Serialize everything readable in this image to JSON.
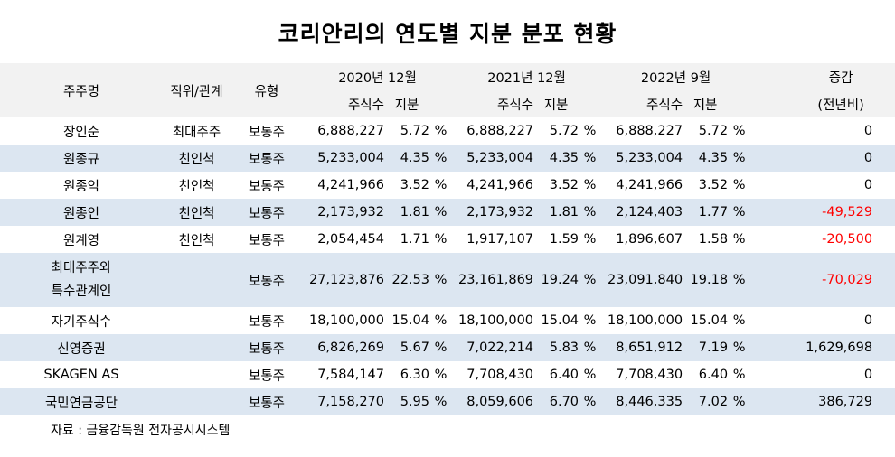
{
  "title": "코리안리의 연도별 지분 분포 현황",
  "headers": {
    "shareholder": "주주명",
    "relation": "직위/관계",
    "type": "유형",
    "period1": "2020년 12월",
    "period2": "2021년 12월",
    "period3": "2022년 9월",
    "change_line1": "증감",
    "change_line2": "(전년비)",
    "shares": "주식수",
    "stake": "지분"
  },
  "percent_sign": "%",
  "rows": [
    {
      "name": "장인순",
      "relation": "최대주주",
      "type": "보통주",
      "s1": "6,888,227",
      "p1": "5.72",
      "s2": "6,888,227",
      "p2": "5.72",
      "s3": "6,888,227",
      "p3": "5.72",
      "change": "0"
    },
    {
      "name": "원종규",
      "relation": "친인척",
      "type": "보통주",
      "s1": "5,233,004",
      "p1": "4.35",
      "s2": "5,233,004",
      "p2": "4.35",
      "s3": "5,233,004",
      "p3": "4.35",
      "change": "0"
    },
    {
      "name": "원종익",
      "relation": "친인척",
      "type": "보통주",
      "s1": "4,241,966",
      "p1": "3.52",
      "s2": "4,241,966",
      "p2": "3.52",
      "s3": "4,241,966",
      "p3": "3.52",
      "change": "0"
    },
    {
      "name": "원종인",
      "relation": "친인척",
      "type": "보통주",
      "s1": "2,173,932",
      "p1": "1.81",
      "s2": "2,173,932",
      "p2": "1.81",
      "s3": "2,124,403",
      "p3": "1.77",
      "change": "-49,529"
    },
    {
      "name": "원계영",
      "relation": "친인척",
      "type": "보통주",
      "s1": "2,054,454",
      "p1": "1.71",
      "s2": "1,917,107",
      "p2": "1.59",
      "s3": "1,896,607",
      "p3": "1.58",
      "change": "-20,500"
    },
    {
      "name_line1": "최대주주와",
      "name_line2": "특수관계인",
      "relation": "",
      "type": "보통주",
      "s1": "27,123,876",
      "p1": "22.53",
      "s2": "23,161,869",
      "p2": "19.24",
      "s3": "23,091,840",
      "p3": "19.18",
      "change": "-70,029"
    },
    {
      "name": "자기주식수",
      "relation": "",
      "type": "보통주",
      "s1": "18,100,000",
      "p1": "15.04",
      "s2": "18,100,000",
      "p2": "15.04",
      "s3": "18,100,000",
      "p3": "15.04",
      "change": "0"
    },
    {
      "name": "신영증권",
      "relation": "",
      "type": "보통주",
      "s1": "6,826,269",
      "p1": "5.67",
      "s2": "7,022,214",
      "p2": "5.83",
      "s3": "8,651,912",
      "p3": "7.19",
      "change": "1,629,698"
    },
    {
      "name": "SKAGEN AS",
      "relation": "",
      "type": "보통주",
      "s1": "7,584,147",
      "p1": "6.30",
      "s2": "7,708,430",
      "p2": "6.40",
      "s3": "7,708,430",
      "p3": "6.40",
      "change": "0"
    },
    {
      "name": "국민연금공단",
      "relation": "",
      "type": "보통주",
      "s1": "7,158,270",
      "p1": "5.95",
      "s2": "8,059,606",
      "p2": "6.70",
      "s3": "8,446,335",
      "p3": "7.02",
      "change": "386,729"
    }
  ],
  "source": "자료 : 금융감독원 전자공시시스템",
  "colors": {
    "header_bg": "#f2f2f2",
    "alt_row_bg": "#dce6f1",
    "negative": "#ff0000"
  }
}
